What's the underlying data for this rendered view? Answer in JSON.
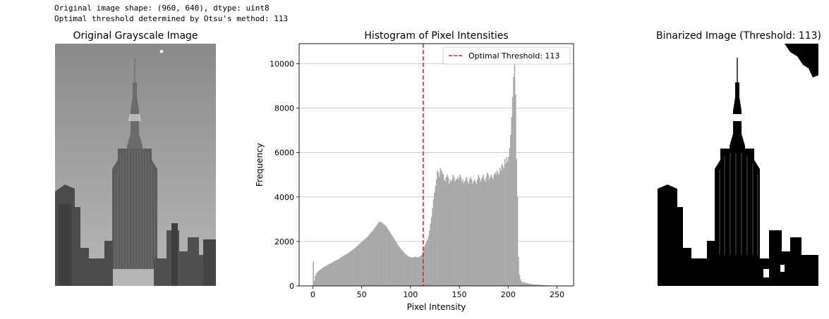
{
  "output": {
    "line1": "Original image shape: (960, 640), dtype: uint8",
    "line2": "Optimal threshold determined by Otsu's method: 113"
  },
  "panels": {
    "original_title": "Original Grayscale Image",
    "histogram_title": "Histogram of Pixel Intensities",
    "binarized_title": "Binarized Image (Threshold: 113)"
  },
  "chart_data": {
    "type": "bar",
    "title": "Histogram of Pixel Intensities",
    "xlabel": "Pixel Intensity",
    "ylabel": "Frequency",
    "xlim": [
      -14,
      267
    ],
    "ylim": [
      0,
      10900
    ],
    "xticks": [
      0,
      50,
      100,
      150,
      200,
      250
    ],
    "yticks": [
      0,
      2000,
      4000,
      6000,
      8000,
      10000
    ],
    "threshold": 113,
    "legend": [
      "Optimal Threshold: 113"
    ],
    "legend_position": "top-right",
    "grid": "y",
    "bar_color": "#a9a9a9",
    "threshold_color": "#d62728",
    "values": [
      1100,
      250,
      450,
      550,
      600,
      650,
      700,
      720,
      760,
      800,
      830,
      850,
      880,
      900,
      930,
      960,
      980,
      1000,
      1020,
      1050,
      1080,
      1100,
      1120,
      1150,
      1170,
      1190,
      1210,
      1240,
      1270,
      1300,
      1330,
      1360,
      1380,
      1400,
      1430,
      1460,
      1490,
      1520,
      1550,
      1580,
      1610,
      1650,
      1690,
      1720,
      1760,
      1800,
      1840,
      1880,
      1920,
      1960,
      2000,
      2040,
      2080,
      2120,
      2160,
      2200,
      2250,
      2300,
      2350,
      2400,
      2450,
      2500,
      2560,
      2620,
      2680,
      2740,
      2800,
      2860,
      2900,
      2880,
      2850,
      2820,
      2780,
      2740,
      2700,
      2640,
      2580,
      2520,
      2450,
      2380,
      2310,
      2240,
      2170,
      2100,
      2030,
      1960,
      1890,
      1820,
      1760,
      1700,
      1640,
      1590,
      1540,
      1490,
      1450,
      1410,
      1380,
      1350,
      1320,
      1300,
      1290,
      1280,
      1270,
      1300,
      1320,
      1310,
      1290,
      1280,
      1300,
      1320,
      1350,
      1400,
      1520,
      1700,
      1800,
      1900,
      2000,
      2100,
      2250,
      2500,
      2800,
      3100,
      3500,
      3900,
      4200,
      4500,
      4800,
      5200,
      5100,
      4900,
      5300,
      5200,
      5100,
      5000,
      4800,
      4700,
      4900,
      5000,
      4900,
      4600,
      4800,
      4700,
      4800,
      5000,
      4900,
      4700,
      4800,
      4800,
      4900,
      4800,
      5000,
      4900,
      4700,
      4800,
      4600,
      4700,
      4800,
      4900,
      4700,
      4600,
      4800,
      4900,
      4800,
      4600,
      4700,
      4800,
      4700,
      4600,
      4800,
      5000,
      4900,
      4700,
      4800,
      4900,
      5000,
      4800,
      4700,
      4900,
      5100,
      5000,
      4800,
      4900,
      5000,
      4900,
      4800,
      5000,
      5100,
      5000,
      5200,
      5100,
      5000,
      5300,
      5200,
      5500,
      5400,
      5300,
      5700,
      5500,
      5800,
      5600,
      5800,
      6200,
      6800,
      7600,
      8500,
      9400,
      10000,
      8600,
      5700,
      4000,
      1300,
      500,
      300,
      200,
      180,
      160,
      150,
      140,
      130,
      120,
      110,
      100,
      90,
      85,
      80,
      75,
      70,
      65,
      60,
      55,
      50,
      48,
      45,
      42,
      40,
      38,
      36,
      34,
      32,
      30,
      28,
      26,
      24,
      22,
      20,
      18,
      16,
      14,
      12,
      10,
      8,
      6,
      5,
      4,
      3,
      2,
      1,
      0,
      0,
      0,
      0
    ]
  }
}
